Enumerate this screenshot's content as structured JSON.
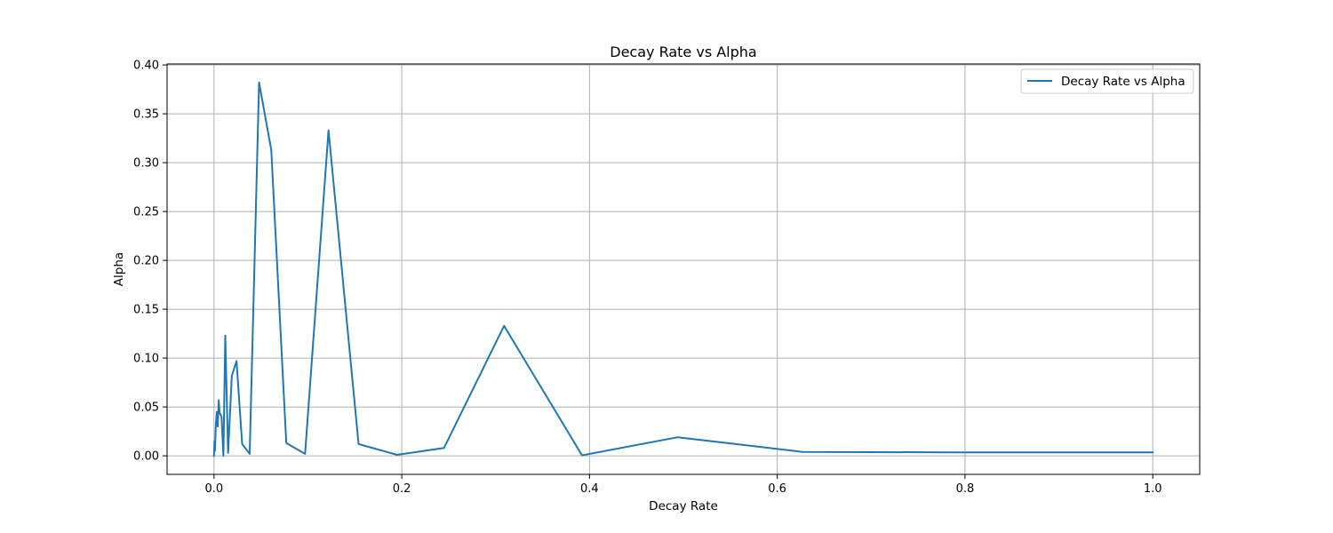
{
  "chart_data": {
    "type": "line",
    "title": "Decay Rate vs Alpha",
    "xlabel": "Decay Rate",
    "ylabel": "Alpha",
    "xlim": [
      -0.05,
      1.05
    ],
    "ylim": [
      -0.019,
      0.401
    ],
    "xticks": [
      0.0,
      0.2,
      0.4,
      0.6,
      0.8,
      1.0
    ],
    "xtick_labels": [
      "0.0",
      "0.2",
      "0.4",
      "0.6",
      "0.8",
      "1.0"
    ],
    "yticks": [
      0.0,
      0.05,
      0.1,
      0.15,
      0.2,
      0.25,
      0.3,
      0.35,
      0.4
    ],
    "ytick_labels": [
      "0.00",
      "0.05",
      "0.10",
      "0.15",
      "0.20",
      "0.25",
      "0.30",
      "0.35",
      "0.40"
    ],
    "grid": true,
    "legend_position": "top-right",
    "colors": {
      "line": "#1f77b4"
    },
    "series": [
      {
        "name": "Decay Rate vs Alpha",
        "x": [
          0.0,
          0.0005,
          0.001,
          0.002,
          0.003,
          0.004,
          0.005,
          0.006,
          0.008,
          0.01,
          0.012,
          0.015,
          0.019,
          0.024,
          0.03,
          0.038,
          0.048,
          0.061,
          0.077,
          0.097,
          0.122,
          0.154,
          0.195,
          0.245,
          0.309,
          0.392,
          0.494,
          0.627,
          0.79,
          1.0
        ],
        "y": [
          0.0,
          0.015,
          0.005,
          0.032,
          0.045,
          0.03,
          0.057,
          0.044,
          0.04,
          0.0,
          0.123,
          0.003,
          0.082,
          0.097,
          0.012,
          0.002,
          0.382,
          0.313,
          0.013,
          0.002,
          0.333,
          0.012,
          0.001,
          0.008,
          0.133,
          0.0005,
          0.019,
          0.004,
          0.0035,
          0.0035
        ]
      }
    ]
  }
}
